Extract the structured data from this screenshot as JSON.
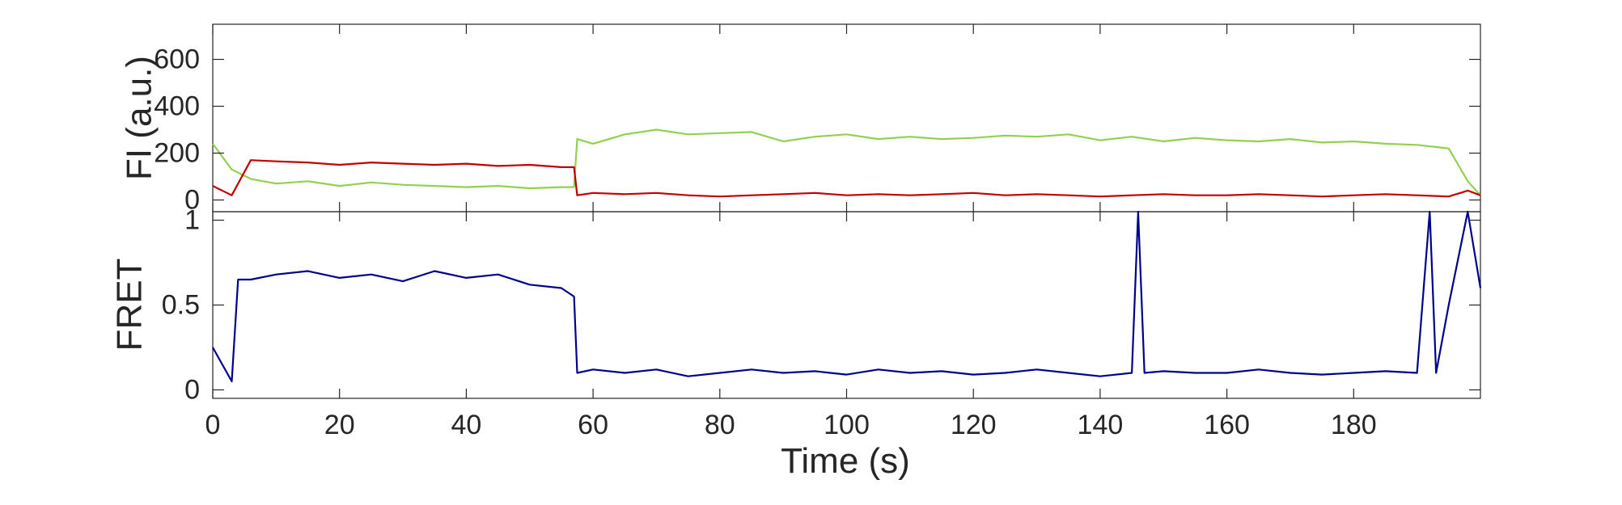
{
  "chart_data": [
    {
      "type": "line",
      "ylabel": "FI (a.u.)",
      "xlim": [
        0,
        200
      ],
      "ylim": [
        -50,
        750
      ],
      "yticks": [
        0,
        200,
        400,
        600
      ],
      "grid": false,
      "series": [
        {
          "color": "#92d050",
          "x": [
            0,
            3,
            6,
            10,
            15,
            20,
            25,
            30,
            35,
            40,
            45,
            50,
            55,
            57,
            57.5,
            60,
            65,
            70,
            75,
            80,
            85,
            90,
            95,
            100,
            105,
            110,
            115,
            120,
            125,
            130,
            135,
            140,
            145,
            150,
            155,
            160,
            165,
            170,
            175,
            180,
            185,
            190,
            195,
            198,
            200
          ],
          "y": [
            240,
            130,
            90,
            70,
            80,
            60,
            75,
            65,
            60,
            55,
            60,
            50,
            55,
            55,
            260,
            240,
            280,
            300,
            280,
            285,
            290,
            250,
            270,
            280,
            260,
            270,
            260,
            265,
            275,
            270,
            280,
            255,
            270,
            250,
            265,
            255,
            250,
            260,
            245,
            250,
            240,
            235,
            220,
            80,
            20
          ]
        },
        {
          "color": "#c00000",
          "x": [
            0,
            3,
            6,
            10,
            15,
            20,
            25,
            30,
            35,
            40,
            45,
            50,
            55,
            57,
            57.5,
            60,
            65,
            70,
            75,
            80,
            85,
            90,
            95,
            100,
            105,
            110,
            115,
            120,
            125,
            130,
            135,
            140,
            145,
            150,
            155,
            160,
            165,
            170,
            175,
            180,
            185,
            190,
            195,
            198,
            200
          ],
          "y": [
            60,
            20,
            170,
            165,
            160,
            150,
            160,
            155,
            150,
            155,
            145,
            150,
            140,
            140,
            20,
            30,
            25,
            30,
            20,
            15,
            20,
            25,
            30,
            20,
            25,
            20,
            25,
            30,
            20,
            25,
            20,
            15,
            20,
            25,
            20,
            20,
            25,
            20,
            15,
            20,
            25,
            20,
            15,
            40,
            20
          ]
        }
      ]
    },
    {
      "type": "line",
      "ylabel": "FRET",
      "xlabel": "Time (s)",
      "xlim": [
        0,
        200
      ],
      "ylim": [
        -0.05,
        1.05
      ],
      "yticks": [
        0,
        0.5,
        1
      ],
      "xticks": [
        0,
        20,
        40,
        60,
        80,
        100,
        120,
        140,
        160,
        180
      ],
      "grid": false,
      "series": [
        {
          "color": "#00008b",
          "x": [
            0,
            3,
            4,
            6,
            10,
            15,
            20,
            25,
            30,
            35,
            40,
            45,
            50,
            55,
            57,
            57.5,
            60,
            65,
            70,
            75,
            80,
            85,
            90,
            95,
            100,
            105,
            110,
            115,
            120,
            125,
            130,
            135,
            140,
            145,
            146,
            147,
            150,
            155,
            160,
            165,
            170,
            175,
            180,
            185,
            190,
            192,
            193,
            195,
            198,
            200
          ],
          "y": [
            0.25,
            0.05,
            0.65,
            0.65,
            0.68,
            0.7,
            0.66,
            0.68,
            0.64,
            0.7,
            0.66,
            0.68,
            0.62,
            0.6,
            0.55,
            0.1,
            0.12,
            0.1,
            0.12,
            0.08,
            0.1,
            0.12,
            0.1,
            0.11,
            0.09,
            0.12,
            0.1,
            0.11,
            0.09,
            0.1,
            0.12,
            0.1,
            0.08,
            0.1,
            1.05,
            0.1,
            0.11,
            0.1,
            0.1,
            0.12,
            0.1,
            0.09,
            0.1,
            0.11,
            0.1,
            1.05,
            0.1,
            0.5,
            1.05,
            0.6
          ]
        }
      ]
    }
  ]
}
